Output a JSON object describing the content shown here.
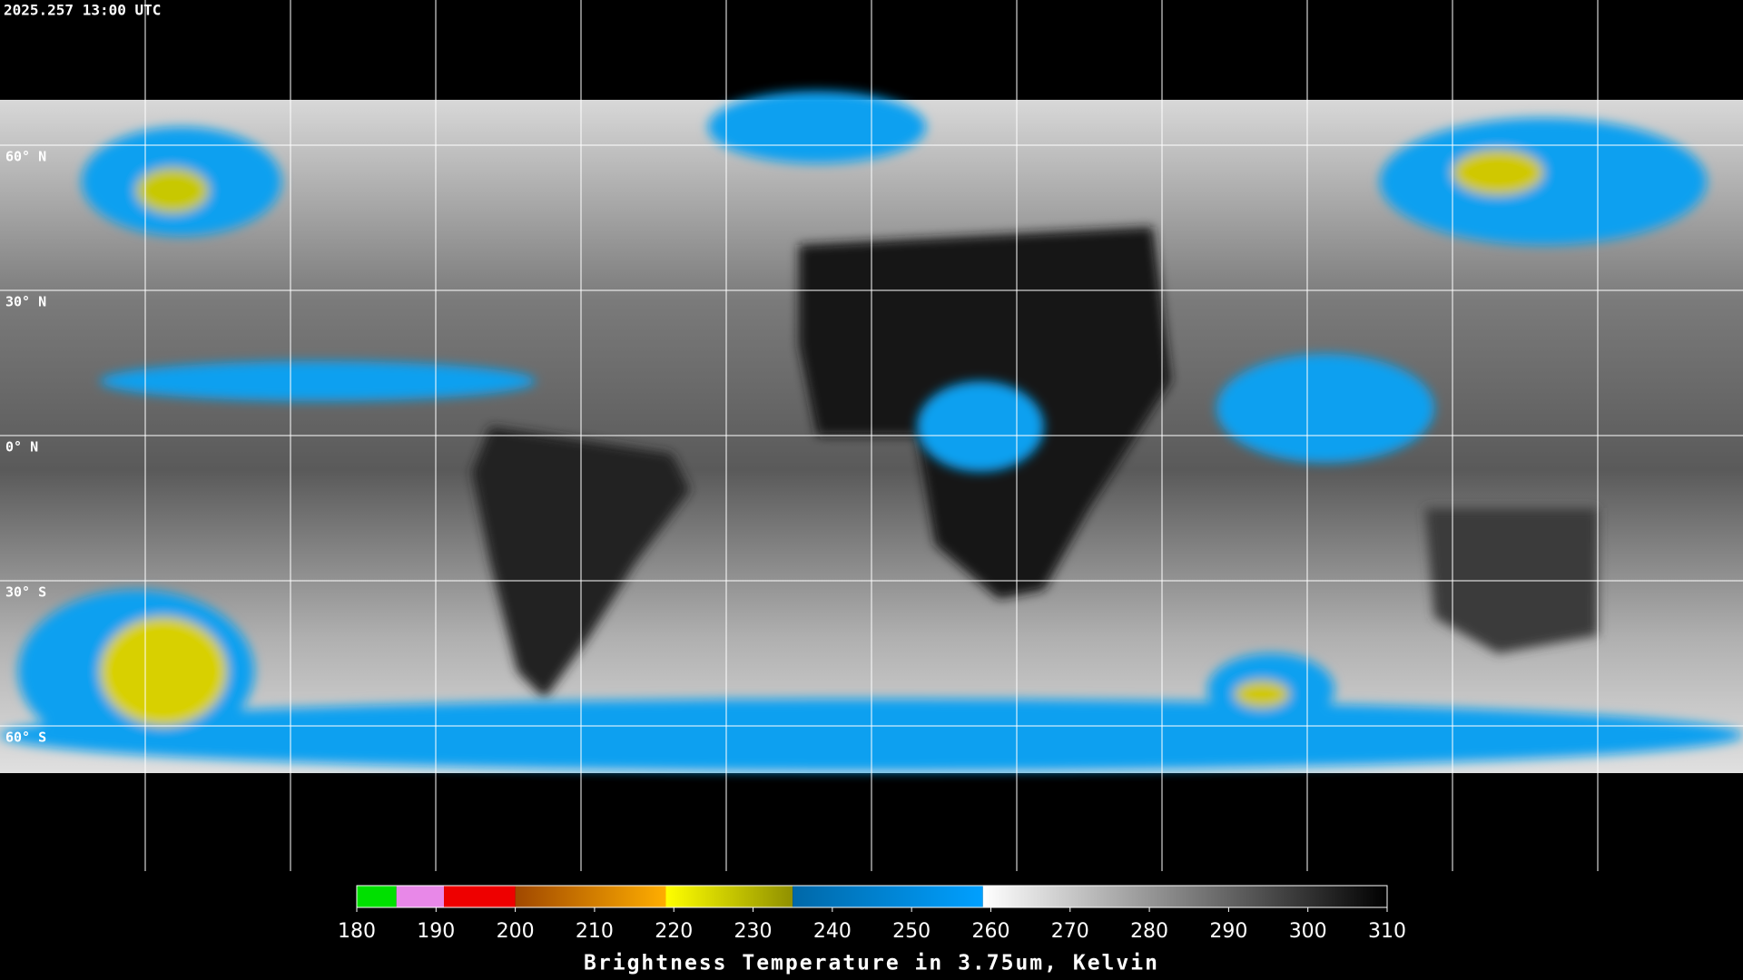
{
  "timestamp": "2025.257 13:00 UTC",
  "map": {
    "lat_range": [
      90,
      -90
    ],
    "lat_lines": [
      {
        "value": 60,
        "label": "60° N"
      },
      {
        "value": 30,
        "label": "30° N"
      },
      {
        "value": 0,
        "label": "0° N"
      },
      {
        "value": -30,
        "label": "30° S"
      },
      {
        "value": -60,
        "label": "60° S"
      }
    ]
  },
  "colorbar": {
    "title": "Brightness Temperature in 3.75um, Kelvin",
    "lim": [
      180,
      310
    ],
    "ticks": [
      180,
      190,
      200,
      210,
      220,
      230,
      240,
      250,
      260,
      270,
      280,
      290,
      300,
      310
    ],
    "segments": [
      {
        "from": 180,
        "to": 185,
        "colors": [
          "#00e000",
          "#00e000"
        ]
      },
      {
        "from": 185,
        "to": 191,
        "colors": [
          "#e888e8",
          "#e888e8"
        ]
      },
      {
        "from": 191,
        "to": 200,
        "colors": [
          "#ee0000",
          "#ee0000"
        ]
      },
      {
        "from": 200,
        "to": 219,
        "colors": [
          "#a04800",
          "#ffae00"
        ]
      },
      {
        "from": 219,
        "to": 235,
        "colors": [
          "#ffff00",
          "#909000"
        ]
      },
      {
        "from": 235,
        "to": 259,
        "colors": [
          "#0068a8",
          "#00a0ff"
        ]
      },
      {
        "from": 259,
        "to": 310,
        "colors": [
          "#ffffff",
          "#000000"
        ]
      }
    ]
  }
}
